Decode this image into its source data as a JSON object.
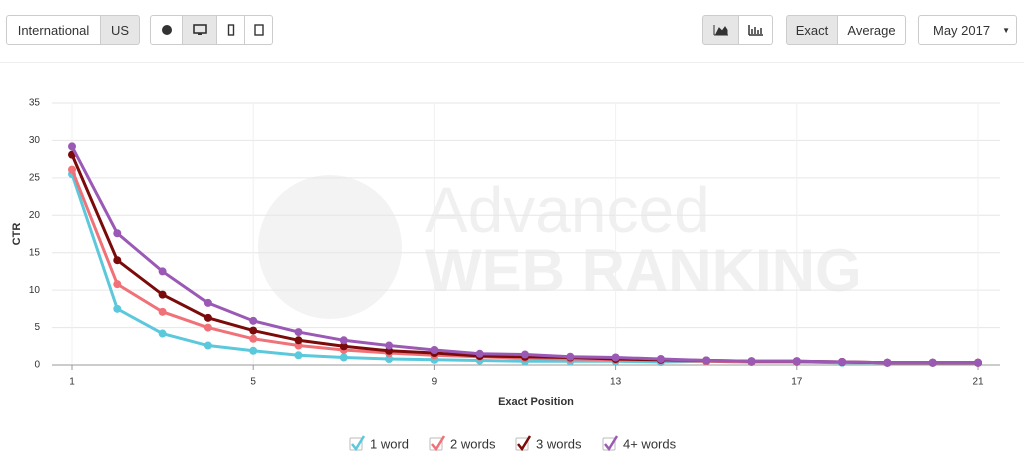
{
  "toolbar": {
    "region": [
      "International",
      "US"
    ],
    "mode": [
      "Exact",
      "Average"
    ],
    "date": "May 2017"
  },
  "chart_data": {
    "type": "line",
    "watermark": [
      "Advanced",
      "WEB RANKING"
    ],
    "x_label": "Exact Position",
    "y_label": "CTR",
    "x": [
      1,
      2,
      3,
      4,
      5,
      6,
      7,
      8,
      9,
      10,
      11,
      12,
      13,
      14,
      15,
      16,
      17,
      18,
      19,
      20,
      21
    ],
    "xlim": [
      1,
      21
    ],
    "xticks": [
      1,
      5,
      9,
      13,
      17,
      21
    ],
    "ylim": [
      0,
      35
    ],
    "yticks": [
      0,
      5,
      10,
      15,
      20,
      25,
      30,
      35
    ],
    "grid": true,
    "series": [
      {
        "name": "1 word",
        "color": "#5bc8dc",
        "values": [
          25.5,
          7.5,
          4.2,
          2.6,
          1.9,
          1.3,
          1.0,
          0.8,
          0.7,
          0.6,
          0.5,
          0.5,
          0.5,
          0.4,
          0.5,
          0.4,
          0.4,
          0.3,
          0.3,
          0.3,
          0.3
        ]
      },
      {
        "name": "2 words",
        "color": "#f07178",
        "values": [
          26.1,
          10.8,
          7.1,
          5.0,
          3.5,
          2.6,
          2.0,
          1.6,
          1.3,
          1.1,
          0.9,
          0.8,
          0.7,
          0.6,
          0.5,
          0.4,
          0.4,
          0.4,
          0.3,
          0.3,
          0.3
        ]
      },
      {
        "name": "3 words",
        "color": "#7b0a0a",
        "values": [
          28.1,
          14.0,
          9.4,
          6.3,
          4.6,
          3.3,
          2.5,
          1.9,
          1.6,
          1.2,
          1.1,
          1.0,
          0.8,
          0.7,
          0.6,
          0.5,
          0.5,
          0.4,
          0.3,
          0.3,
          0.3
        ]
      },
      {
        "name": "4+ words",
        "color": "#9b59b6",
        "values": [
          29.2,
          17.6,
          12.5,
          8.3,
          5.9,
          4.4,
          3.3,
          2.6,
          2.0,
          1.5,
          1.4,
          1.1,
          1.0,
          0.8,
          0.6,
          0.5,
          0.5,
          0.4,
          0.3,
          0.3,
          0.3
        ]
      }
    ]
  }
}
